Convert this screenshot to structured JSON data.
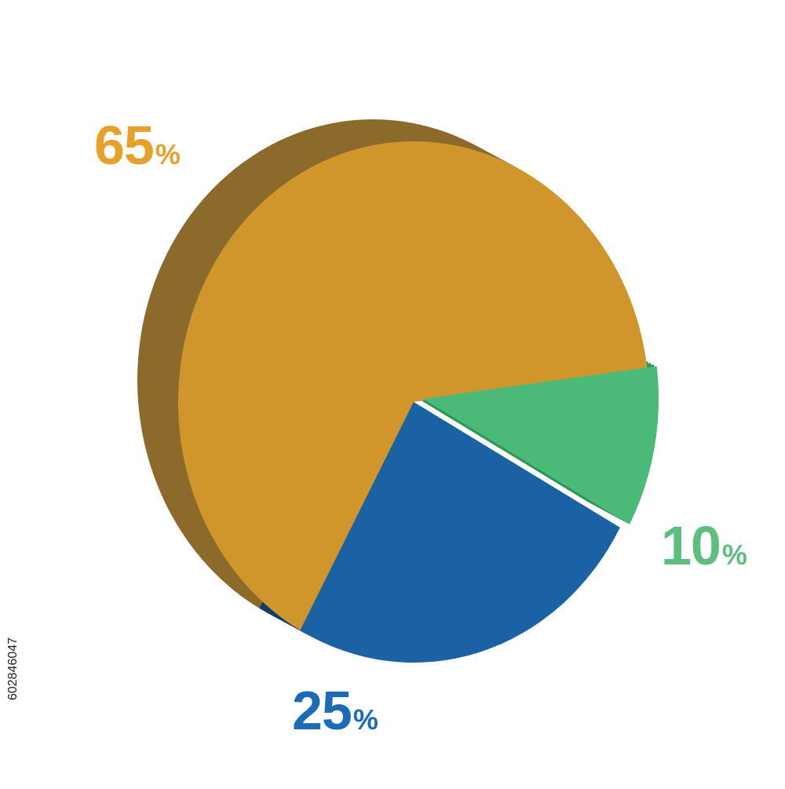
{
  "chart_data": {
    "type": "pie",
    "style": "3d",
    "title": "",
    "slices": [
      {
        "label": "65",
        "unit": "%",
        "value": 65,
        "color": "#D0962B",
        "side_color": "#8C6A2B"
      },
      {
        "label": "25",
        "unit": "%",
        "value": 25,
        "color": "#1A62A4",
        "side_color": "#0E3E6E"
      },
      {
        "label": "10",
        "unit": "%",
        "value": 10,
        "color": "#4BBA78",
        "side_color": "#2E9858"
      }
    ],
    "label_colors": [
      "#E5A12A",
      "#1B6BB6",
      "#5DBF7E"
    ],
    "slice_order": "clockwise-from-right",
    "exploded_slice": "10"
  },
  "stock_id": "602846047"
}
